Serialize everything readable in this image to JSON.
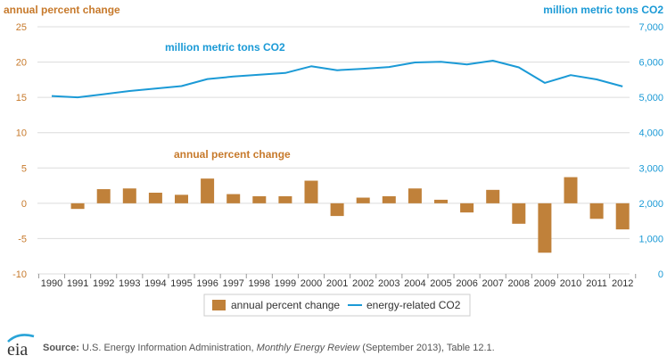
{
  "colors": {
    "bar": "#c0813a",
    "line": "#1b9ad6",
    "left_axis_text": "#c77a2c",
    "right_axis_text": "#1b9ad6",
    "grid": "#dcdcdc",
    "tick_text": "#555555"
  },
  "chart_data": {
    "type": "bar",
    "x": [
      "1990",
      "1991",
      "1992",
      "1993",
      "1994",
      "1995",
      "1996",
      "1997",
      "1998",
      "1999",
      "2000",
      "2001",
      "2002",
      "2003",
      "2004",
      "2005",
      "2006",
      "2007",
      "2008",
      "2009",
      "2010",
      "2011",
      "2012"
    ],
    "series": [
      {
        "name": "annual percent change",
        "type": "bar",
        "axis": "left",
        "values": [
          null,
          -0.8,
          2.0,
          2.1,
          1.5,
          1.2,
          3.5,
          1.3,
          1.0,
          1.0,
          3.2,
          -1.8,
          0.8,
          1.0,
          2.1,
          0.5,
          -1.3,
          1.9,
          -2.9,
          -7.0,
          3.7,
          -2.2,
          -3.7
        ]
      },
      {
        "name": "energy-related CO2",
        "type": "line",
        "axis": "right",
        "values": [
          5040,
          5000,
          5090,
          5180,
          5250,
          5320,
          5520,
          5590,
          5640,
          5690,
          5880,
          5770,
          5810,
          5860,
          5990,
          6010,
          5930,
          6040,
          5850,
          5410,
          5630,
          5510,
          5310
        ]
      }
    ],
    "left_axis": {
      "title": "annual percent change",
      "ylim": [
        -10,
        25
      ],
      "ticks": [
        "-10",
        "-5",
        "0",
        "5",
        "10",
        "15",
        "20",
        "25"
      ]
    },
    "right_axis": {
      "title": "million metric tons CO2",
      "ylim": [
        0,
        7000
      ],
      "ticks": [
        "0",
        "1,000",
        "2,000",
        "3,000",
        "4,000",
        "5,000",
        "6,000",
        "7,000"
      ]
    },
    "annotations": {
      "line_label": "million metric tons CO2",
      "bar_label": "annual percent change"
    },
    "legend": {
      "placement": "bottom-center",
      "items": [
        "annual percent change",
        "energy-related CO2"
      ]
    },
    "grid": true
  },
  "source": {
    "label": "Source:",
    "text_plain": " U.S. Energy Information Administration, ",
    "text_italic": "Monthly Energy Review",
    "text_tail": " (September 2013), Table 12.1.",
    "logo_text": "eia"
  }
}
